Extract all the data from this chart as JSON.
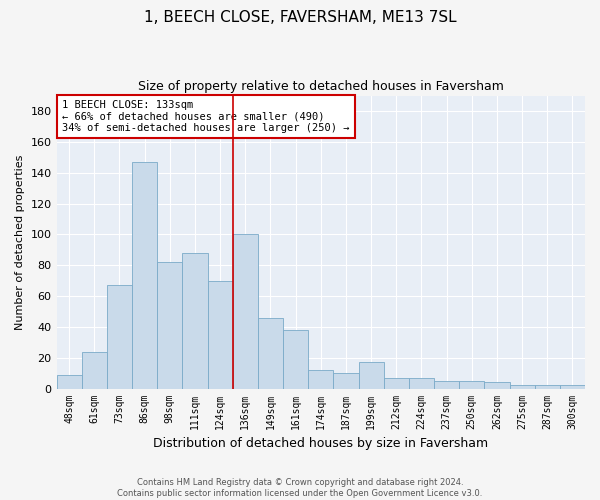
{
  "title": "1, BEECH CLOSE, FAVERSHAM, ME13 7SL",
  "subtitle": "Size of property relative to detached houses in Faversham",
  "xlabel": "Distribution of detached houses by size in Faversham",
  "ylabel": "Number of detached properties",
  "bar_color": "#c9daea",
  "bar_edge_color": "#7aaac8",
  "background_color": "#e8eef6",
  "grid_color": "#ffffff",
  "fig_facecolor": "#f5f5f5",
  "categories": [
    "48sqm",
    "61sqm",
    "73sqm",
    "86sqm",
    "98sqm",
    "111sqm",
    "124sqm",
    "136sqm",
    "149sqm",
    "161sqm",
    "174sqm",
    "187sqm",
    "199sqm",
    "212sqm",
    "224sqm",
    "237sqm",
    "250sqm",
    "262sqm",
    "275sqm",
    "287sqm",
    "300sqm"
  ],
  "values": [
    9,
    24,
    67,
    147,
    82,
    88,
    70,
    100,
    46,
    38,
    12,
    10,
    17,
    7,
    7,
    5,
    5,
    4,
    2,
    2,
    2
  ],
  "ylim": [
    0,
    190
  ],
  "yticks": [
    0,
    20,
    40,
    60,
    80,
    100,
    120,
    140,
    160,
    180
  ],
  "vline_x": 6.5,
  "vline_color": "#cc0000",
  "annotation_title": "1 BEECH CLOSE: 133sqm",
  "annotation_line1": "← 66% of detached houses are smaller (490)",
  "annotation_line2": "34% of semi-detached houses are larger (250) →",
  "annotation_box_edge": "#cc0000",
  "footer_line1": "Contains HM Land Registry data © Crown copyright and database right 2024.",
  "footer_line2": "Contains public sector information licensed under the Open Government Licence v3.0."
}
